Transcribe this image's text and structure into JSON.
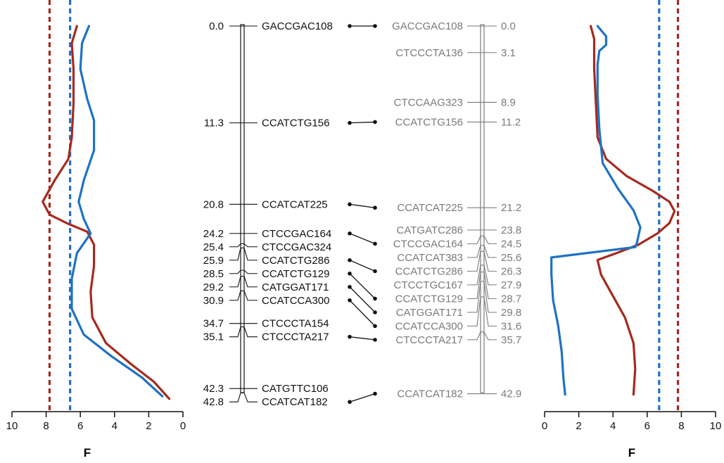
{
  "colors": {
    "red": "#a52a1e",
    "blue": "#1f72c4",
    "black": "#111111",
    "gray": "#7a7a7a"
  },
  "left_map": {
    "markers": [
      {
        "name": "GACCGAC108",
        "pos": "0.0",
        "cM": 0.0
      },
      {
        "name": "CCATCTG156",
        "pos": "11.3",
        "cM": 11.3
      },
      {
        "name": "CCATCAT225",
        "pos": "20.8",
        "cM": 20.8
      },
      {
        "name": "CTCCGAC164",
        "pos": "24.2",
        "cM": 24.2
      },
      {
        "name": "CTCCGAC324",
        "pos": "25.4",
        "cM": 25.4
      },
      {
        "name": "CCATCTG286",
        "pos": "25.9",
        "cM": 25.9
      },
      {
        "name": "CCATCTG129",
        "pos": "28.5",
        "cM": 28.5
      },
      {
        "name": "CATGGAT171",
        "pos": "29.2",
        "cM": 29.2
      },
      {
        "name": "CCATCCA300",
        "pos": "30.9",
        "cM": 30.9
      },
      {
        "name": "CTCCCTA154",
        "pos": "34.7",
        "cM": 34.7
      },
      {
        "name": "CTCCCTA217",
        "pos": "35.1",
        "cM": 35.1
      },
      {
        "name": "CATGTTC106",
        "pos": "42.3",
        "cM": 42.3
      },
      {
        "name": "CCATCAT182",
        "pos": "42.8",
        "cM": 42.8
      }
    ]
  },
  "right_map": {
    "markers": [
      {
        "name": "GACCGAC108",
        "pos": "0.0",
        "cM": 0.0
      },
      {
        "name": "CTCCCTA136",
        "pos": "3.1",
        "cM": 3.1
      },
      {
        "name": "CTCCAAG323",
        "pos": "8.9",
        "cM": 8.9
      },
      {
        "name": "CCATCTG156",
        "pos": "11.2",
        "cM": 11.2
      },
      {
        "name": "CCATCAT225",
        "pos": "21.2",
        "cM": 21.2
      },
      {
        "name": "CATGATC286",
        "pos": "23.8",
        "cM": 23.8
      },
      {
        "name": "CTCCGAC164",
        "pos": "24.5",
        "cM": 24.5
      },
      {
        "name": "CCATCAT383",
        "pos": "25.6",
        "cM": 25.6
      },
      {
        "name": "CCATCTG286",
        "pos": "26.3",
        "cM": 26.3
      },
      {
        "name": "CTCCTGC167",
        "pos": "27.9",
        "cM": 27.9
      },
      {
        "name": "CCATCTG129",
        "pos": "28.7",
        "cM": 28.7
      },
      {
        "name": "CATGGAT171",
        "pos": "29.8",
        "cM": 29.8
      },
      {
        "name": "CCATCCA300",
        "pos": "31.6",
        "cM": 31.6
      },
      {
        "name": "CTCCCTA217",
        "pos": "35.7",
        "cM": 35.7
      },
      {
        "name": "CCATCAT182",
        "pos": "42.9",
        "cM": 42.9
      }
    ]
  },
  "links": [
    {
      "from": 0,
      "to": 0
    },
    {
      "from": 1,
      "to": 3
    },
    {
      "from": 2,
      "to": 4
    },
    {
      "from": 3,
      "to": 6
    },
    {
      "from": 5,
      "to": 8
    },
    {
      "from": 6,
      "to": 10
    },
    {
      "from": 7,
      "to": 11
    },
    {
      "from": 8,
      "to": 12
    },
    {
      "from": 10,
      "to": 13
    },
    {
      "from": 12,
      "to": 14
    }
  ],
  "left_plot": {
    "xlabel": "F",
    "ticks": [
      "10",
      "8",
      "6",
      "4",
      "2",
      "0"
    ],
    "xlim": [
      10,
      0
    ],
    "threshold_red": 7.8,
    "threshold_blue": 6.6,
    "red_curve": [
      [
        6.2,
        0.0
      ],
      [
        6.5,
        2.0
      ],
      [
        6.4,
        5.0
      ],
      [
        6.4,
        9.0
      ],
      [
        6.5,
        13.0
      ],
      [
        6.7,
        15.5
      ],
      [
        7.5,
        18.0
      ],
      [
        8.2,
        20.5
      ],
      [
        7.8,
        22.0
      ],
      [
        6.8,
        23.0
      ],
      [
        5.6,
        24.0
      ],
      [
        5.2,
        25.5
      ],
      [
        5.2,
        28.0
      ],
      [
        5.4,
        31.0
      ],
      [
        5.3,
        34.0
      ],
      [
        4.5,
        37.0
      ],
      [
        3.0,
        39.5
      ],
      [
        1.7,
        41.5
      ],
      [
        0.8,
        43.5
      ]
    ],
    "blue_curve": [
      [
        5.5,
        0.0
      ],
      [
        5.9,
        2.0
      ],
      [
        6.0,
        5.0
      ],
      [
        5.6,
        8.5
      ],
      [
        5.2,
        11.0
      ],
      [
        5.2,
        14.5
      ],
      [
        5.8,
        18.0
      ],
      [
        6.1,
        20.5
      ],
      [
        5.8,
        22.5
      ],
      [
        5.4,
        24.2
      ],
      [
        6.2,
        26.5
      ],
      [
        6.5,
        29.5
      ],
      [
        6.5,
        33.0
      ],
      [
        5.8,
        36.0
      ],
      [
        4.2,
        38.5
      ],
      [
        2.4,
        41.0
      ],
      [
        1.2,
        43.2
      ]
    ]
  },
  "right_plot": {
    "xlabel": "F",
    "ticks": [
      "0",
      "2",
      "4",
      "6",
      "8",
      "10"
    ],
    "xlim": [
      0,
      10
    ],
    "threshold_red": 7.8,
    "threshold_blue": 6.7,
    "red_curve": [
      [
        2.7,
        0.0
      ],
      [
        2.9,
        1.5
      ],
      [
        2.9,
        5.0
      ],
      [
        3.0,
        9.0
      ],
      [
        3.1,
        13.0
      ],
      [
        3.6,
        15.5
      ],
      [
        4.8,
        17.5
      ],
      [
        6.3,
        19.2
      ],
      [
        7.3,
        20.5
      ],
      [
        7.6,
        21.6
      ],
      [
        7.3,
        23.0
      ],
      [
        6.6,
        24.2
      ],
      [
        5.5,
        25.5
      ],
      [
        4.2,
        26.5
      ],
      [
        3.1,
        27.3
      ],
      [
        3.3,
        29.0
      ],
      [
        4.0,
        31.5
      ],
      [
        4.7,
        34.0
      ],
      [
        5.2,
        37.0
      ],
      [
        5.3,
        40.0
      ],
      [
        5.2,
        43.0
      ]
    ],
    "blue_curve": [
      [
        3.1,
        0.0
      ],
      [
        3.6,
        1.2
      ],
      [
        3.6,
        2.2
      ],
      [
        3.2,
        2.9
      ],
      [
        3.1,
        4.5
      ],
      [
        3.1,
        8.0
      ],
      [
        3.2,
        12.0
      ],
      [
        3.4,
        16.0
      ],
      [
        4.3,
        19.0
      ],
      [
        5.2,
        21.5
      ],
      [
        5.6,
        23.5
      ],
      [
        5.4,
        25.3
      ],
      [
        5.3,
        25.8
      ],
      [
        0.4,
        27.0
      ],
      [
        0.4,
        29.0
      ],
      [
        0.5,
        32.0
      ],
      [
        0.8,
        35.0
      ],
      [
        1.0,
        38.0
      ],
      [
        1.1,
        41.0
      ],
      [
        1.2,
        43.0
      ]
    ]
  }
}
